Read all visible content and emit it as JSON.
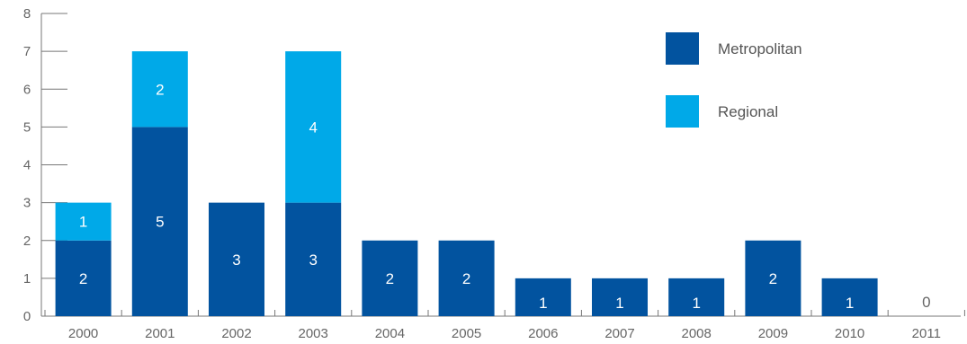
{
  "chart_data": {
    "type": "bar",
    "stacked": true,
    "categories": [
      "2000",
      "2001",
      "2002",
      "2003",
      "2004",
      "2005",
      "2006",
      "2007",
      "2008",
      "2009",
      "2010",
      "2011"
    ],
    "series": [
      {
        "name": "Metropolitan",
        "color": "#02539f",
        "values": [
          2,
          5,
          3,
          3,
          2,
          2,
          1,
          1,
          1,
          2,
          1,
          0
        ]
      },
      {
        "name": "Regional",
        "color": "#00a9e8",
        "values": [
          1,
          2,
          0,
          4,
          0,
          0,
          0,
          0,
          0,
          0,
          0,
          0
        ]
      }
    ],
    "data_labels": [
      [
        "2",
        "5",
        "3",
        "3",
        "2",
        "2",
        "1",
        "1",
        "1",
        "2",
        "1",
        "0"
      ],
      [
        "1",
        "2",
        "",
        "4",
        "",
        "",
        "",
        "",
        "",
        "",
        "",
        ""
      ]
    ],
    "yticks": [
      "0",
      "1",
      "2",
      "3",
      "4",
      "5",
      "6",
      "7",
      "8"
    ],
    "ylim": [
      0,
      8
    ],
    "legend": [
      "Metropolitan",
      "Regional"
    ],
    "legend_position": "top-right",
    "grid": false,
    "title": "",
    "xlabel": "",
    "ylabel": ""
  }
}
